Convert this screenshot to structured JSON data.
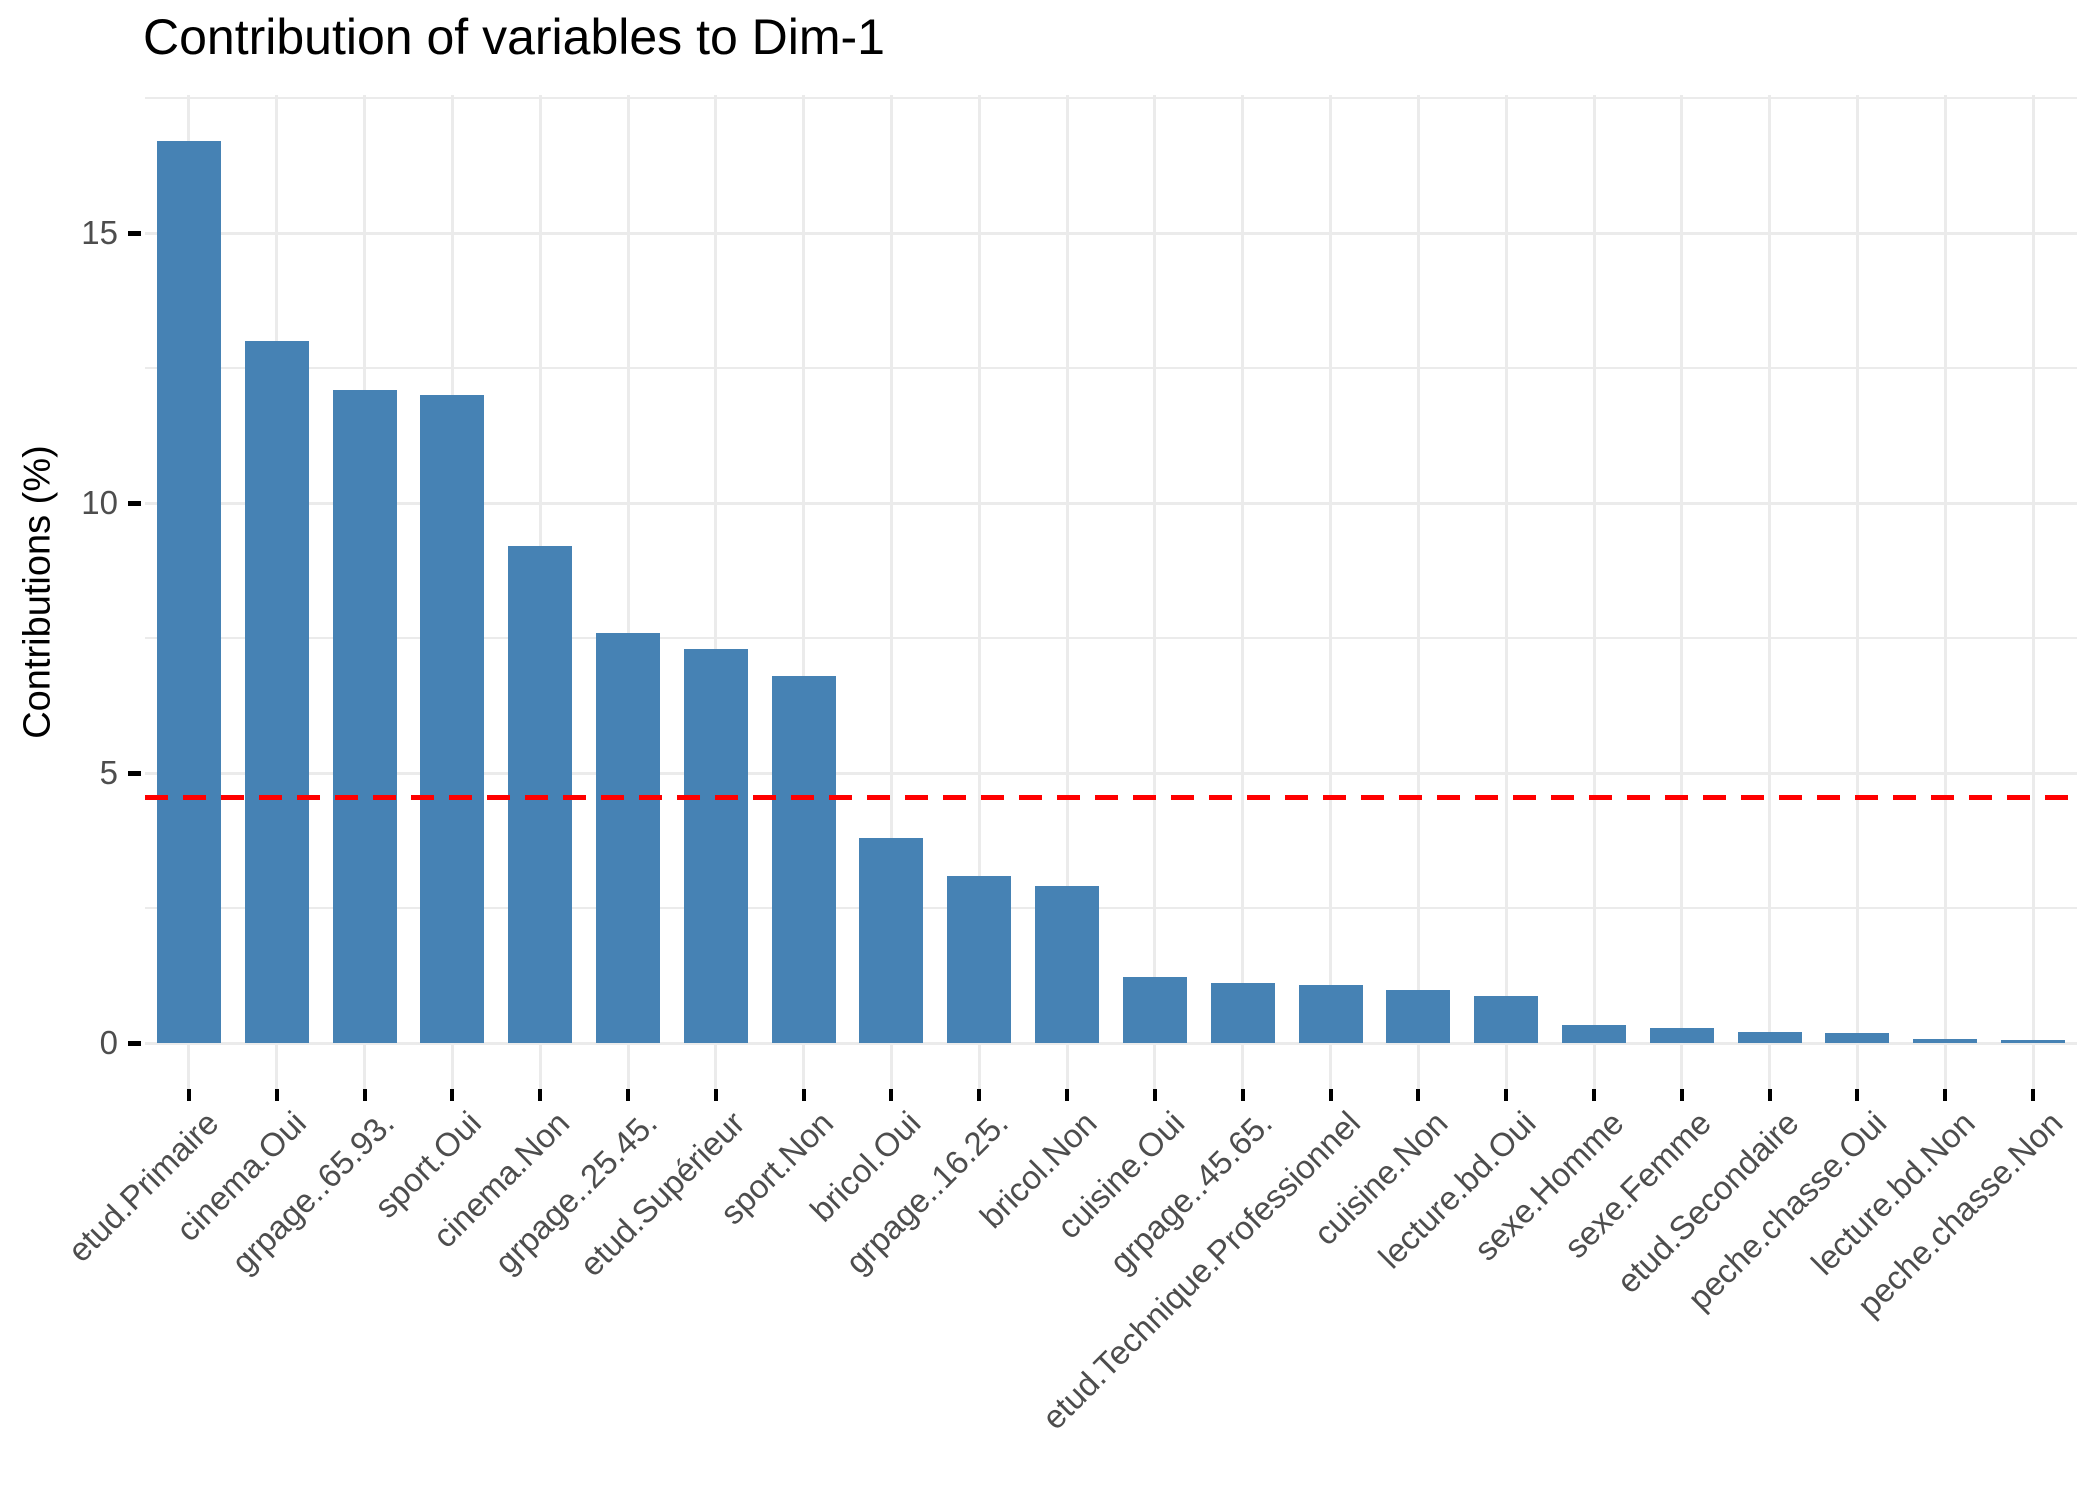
{
  "page": {
    "background": "#FFFFFF"
  },
  "chart_data": {
    "type": "bar",
    "title": "Contribution of variables to Dim-1",
    "xlabel": "",
    "ylabel": "Contributions (%)",
    "categories": [
      "etud.Primaire",
      "cinema.Oui",
      "grpage..65.93.",
      "sport.Oui",
      "cinema.Non",
      "grpage..25.45.",
      "etud.Supérieur",
      "sport.Non",
      "bricol.Oui",
      "grpage..16.25.",
      "bricol.Non",
      "cuisine.Oui",
      "grpage..45.65.",
      "etud.Technique.Professionnel",
      "cuisine.Non",
      "lecture.bd.Oui",
      "sexe.Homme",
      "sexe.Femme",
      "etud.Secondaire",
      "peche.chasse.Oui",
      "lecture.bd.Non",
      "peche.chasse.Non"
    ],
    "values": [
      16.7,
      13.0,
      12.1,
      12.0,
      9.2,
      7.6,
      7.3,
      6.8,
      3.8,
      3.1,
      2.9,
      1.22,
      1.12,
      1.08,
      0.98,
      0.87,
      0.33,
      0.28,
      0.2,
      0.18,
      0.07,
      0.06
    ],
    "ylim": [
      0,
      17.56
    ],
    "y_ticks": [
      0,
      5,
      10,
      15
    ],
    "y_minor_ticks": [
      2.5,
      7.5,
      12.5,
      17.5
    ],
    "grid": "on",
    "legend": "none",
    "reference_line": {
      "value": 4.55,
      "style": "dashed",
      "color": "#FF0000"
    }
  },
  "style": {
    "bar_color": "#4682B4",
    "grid_color": "#EBEBEB",
    "axis_text_color": "#4D4D4D",
    "title_color": "#000000",
    "reference_line_color": "#FF0000"
  }
}
